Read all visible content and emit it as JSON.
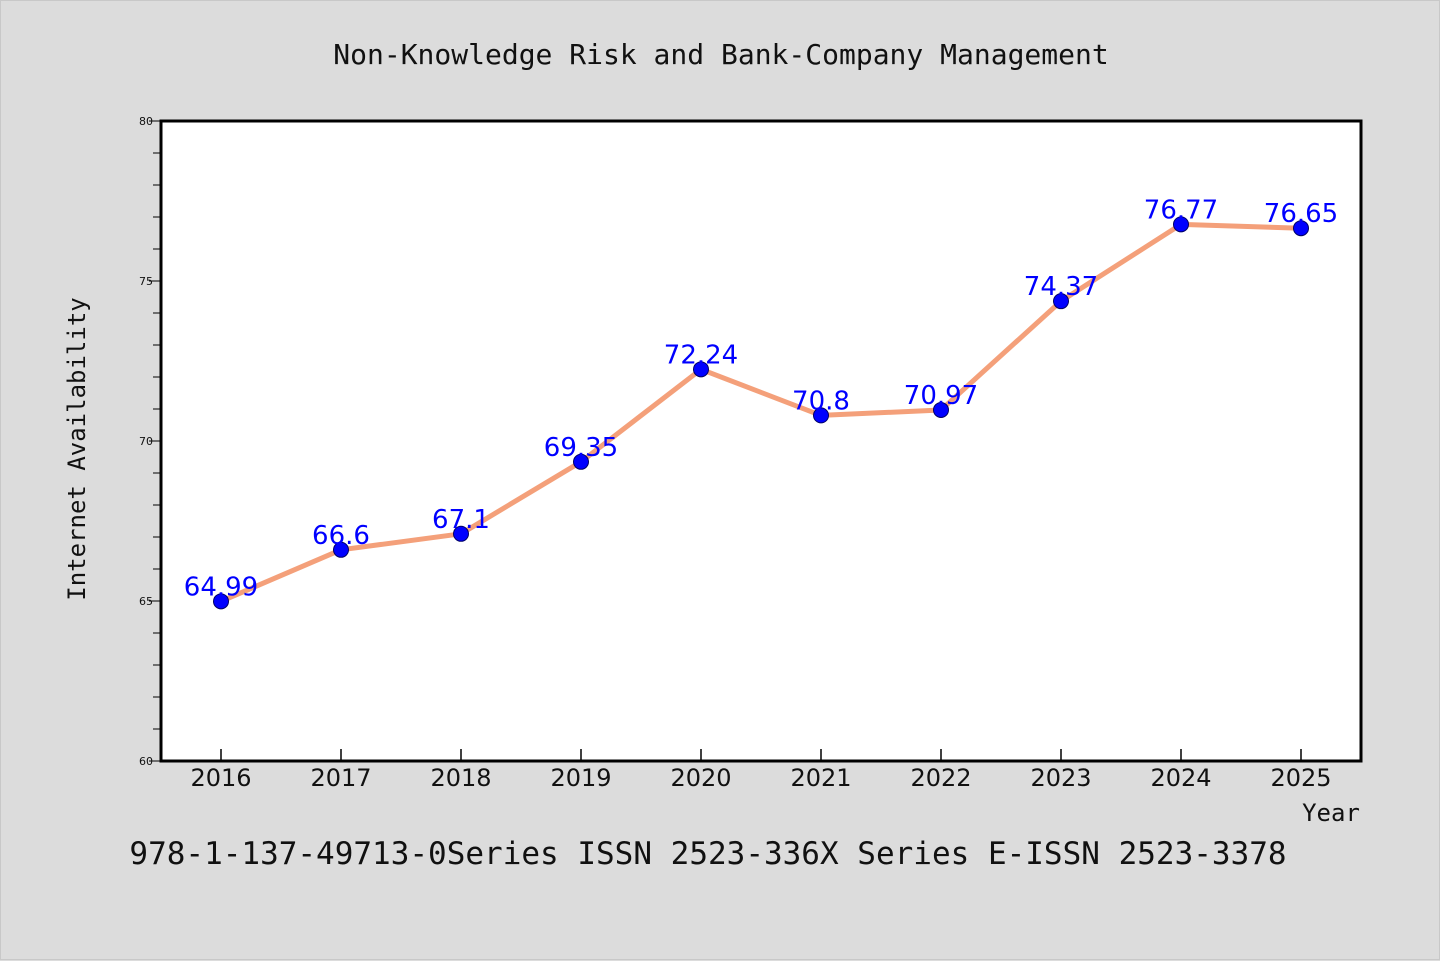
{
  "footer": "978-1-137-49713-0Series ISSN 2523-336X Series E-ISSN 2523-3378",
  "chart_data": {
    "type": "line",
    "title": "Non-Knowledge Risk and Bank-Company Management",
    "xlabel": "Year",
    "ylabel": "Internet Availability",
    "x": [
      "2016",
      "2017",
      "2018",
      "2019",
      "2020",
      "2021",
      "2022",
      "2023",
      "2024",
      "2025"
    ],
    "series": [
      {
        "values": [
          64.99,
          66.6,
          67.1,
          69.35,
          72.24,
          70.8,
          70.97,
          74.37,
          76.77,
          76.65
        ],
        "labels": [
          "64.99",
          "66.6",
          "67.1",
          "69.35",
          "72.24",
          "70.8",
          "70.97",
          "74.37",
          "76.77",
          "76.65"
        ],
        "line_color": "#f4a07a",
        "marker_color": "#0000ff"
      }
    ],
    "ylim": [
      60,
      80
    ],
    "yticks": [
      "60",
      "65",
      "70",
      "75",
      "80"
    ],
    "grid": false,
    "legend": "none",
    "background": "#dcdcdc",
    "plot_background": "#ffffff"
  }
}
